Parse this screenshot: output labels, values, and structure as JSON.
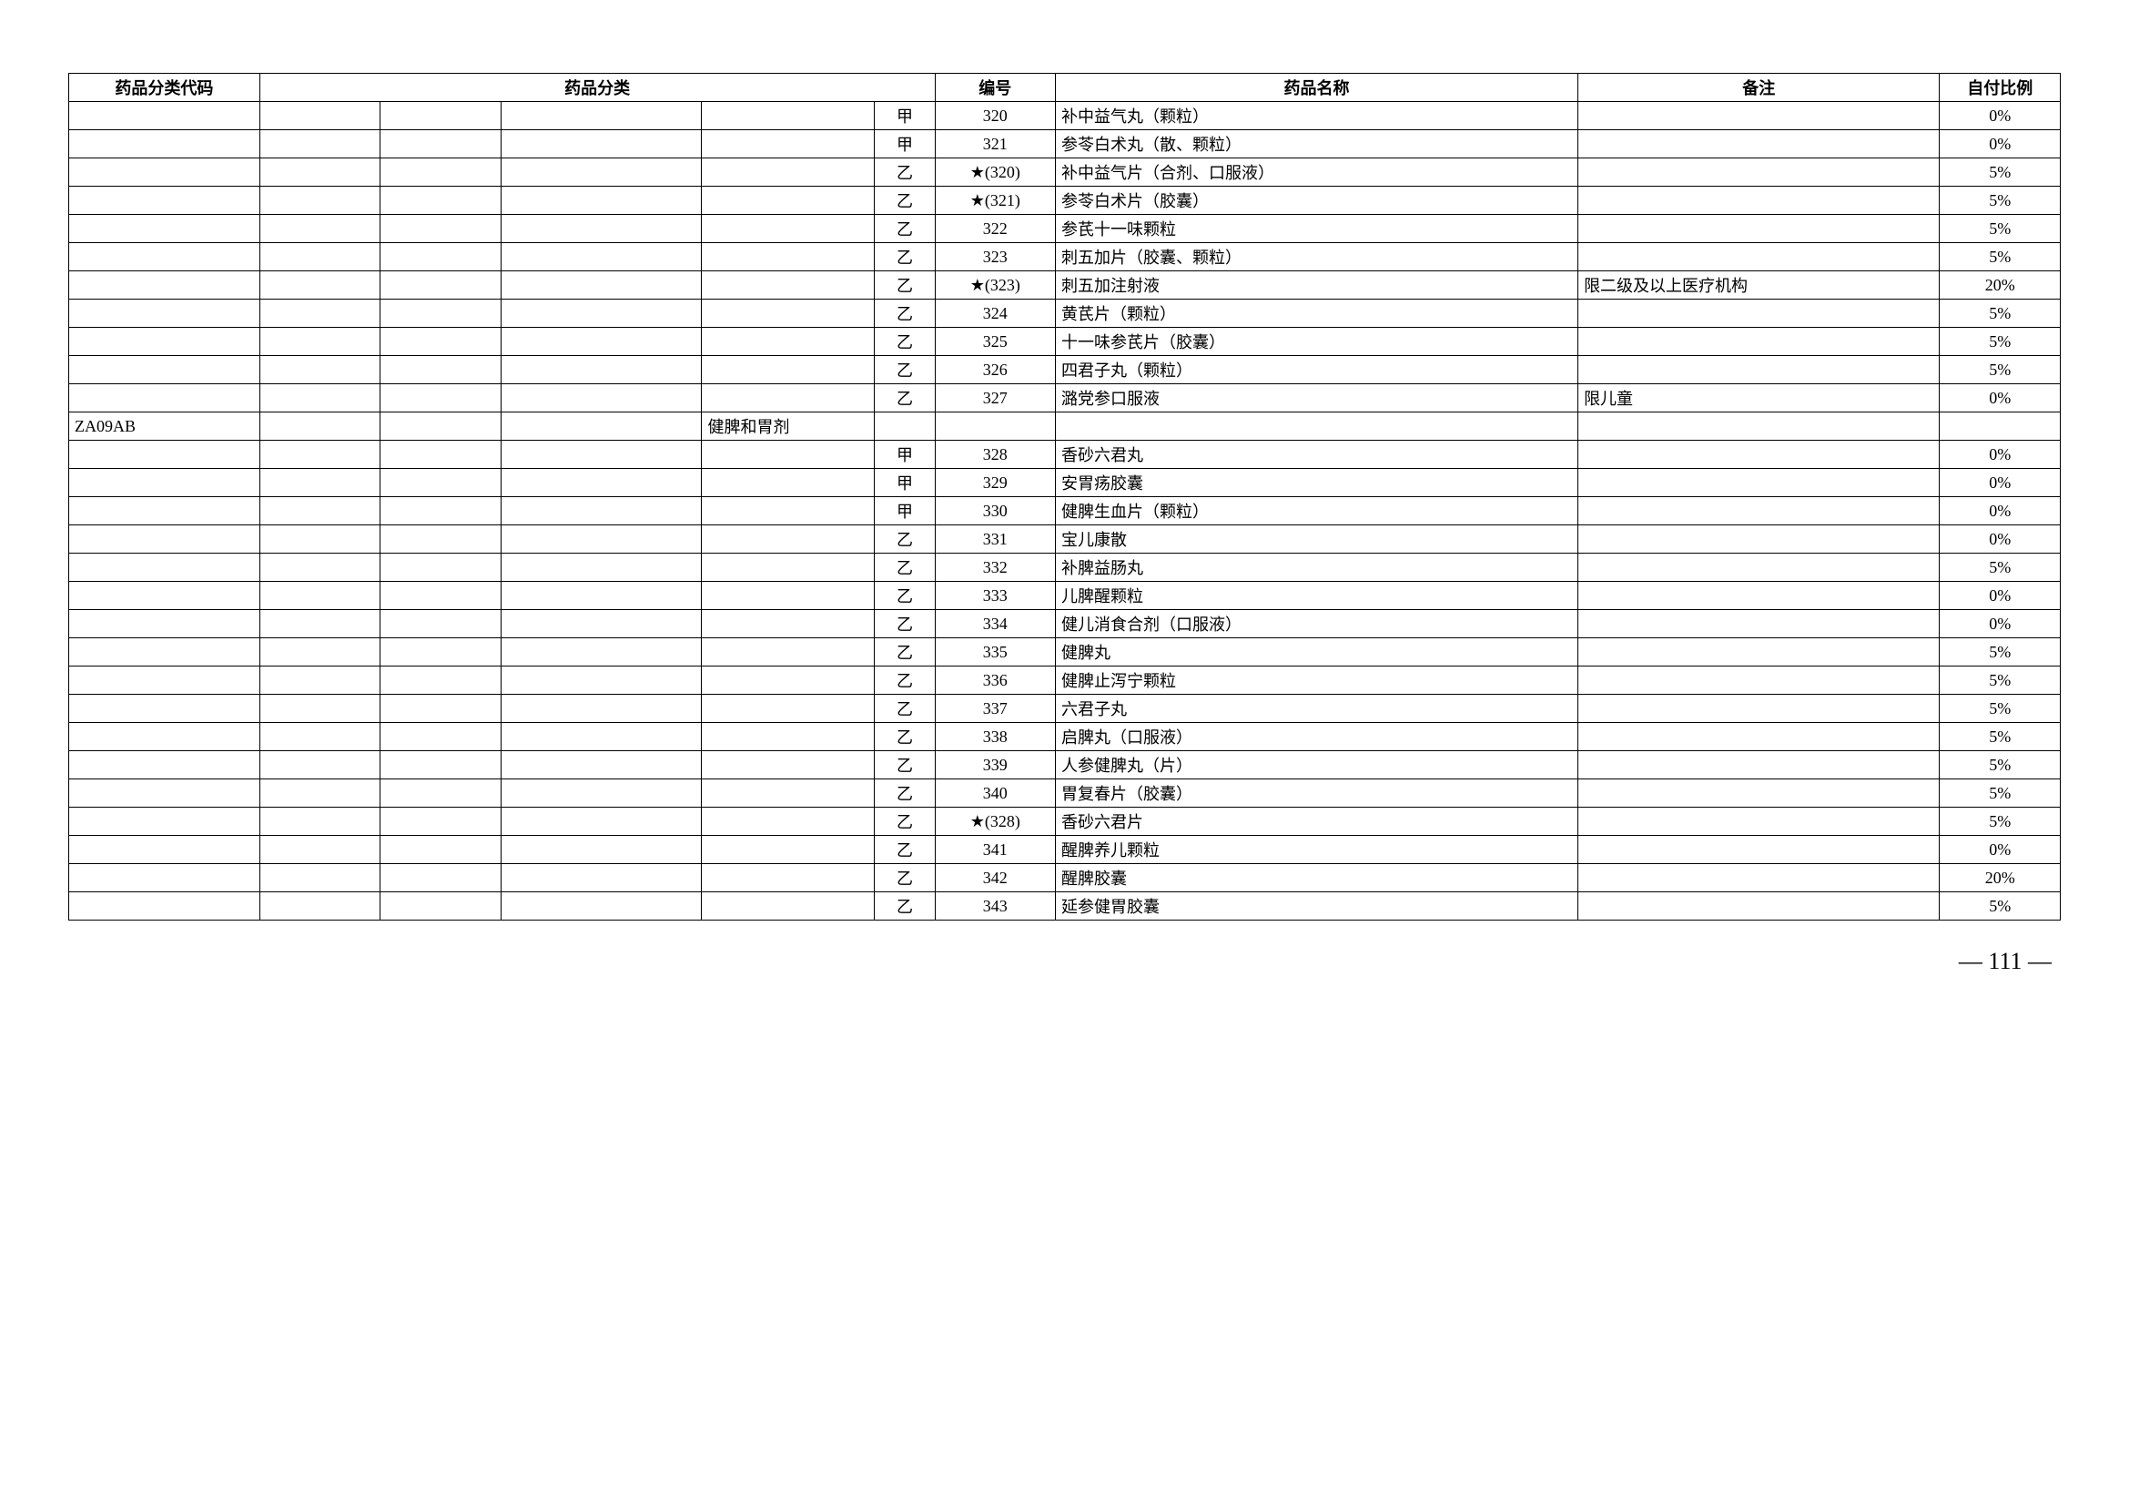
{
  "headers": {
    "code": "药品分类代码",
    "category": "药品分类",
    "number": "编号",
    "name": "药品名称",
    "note": "备注",
    "ratio": "自付比例"
  },
  "rows": [
    {
      "code": "",
      "cat4": "",
      "class": "甲",
      "num": "320",
      "name": "补中益气丸（颗粒）",
      "note": "",
      "ratio": "0%"
    },
    {
      "code": "",
      "cat4": "",
      "class": "甲",
      "num": "321",
      "name": "参苓白术丸（散、颗粒）",
      "note": "",
      "ratio": "0%"
    },
    {
      "code": "",
      "cat4": "",
      "class": "乙",
      "num": "★(320)",
      "name": "补中益气片（合剂、口服液）",
      "note": "",
      "ratio": "5%"
    },
    {
      "code": "",
      "cat4": "",
      "class": "乙",
      "num": "★(321)",
      "name": "参苓白术片（胶囊）",
      "note": "",
      "ratio": "5%"
    },
    {
      "code": "",
      "cat4": "",
      "class": "乙",
      "num": "322",
      "name": "参芪十一味颗粒",
      "note": "",
      "ratio": "5%"
    },
    {
      "code": "",
      "cat4": "",
      "class": "乙",
      "num": "323",
      "name": "刺五加片（胶囊、颗粒）",
      "note": "",
      "ratio": "5%"
    },
    {
      "code": "",
      "cat4": "",
      "class": "乙",
      "num": "★(323)",
      "name": "刺五加注射液",
      "note": "限二级及以上医疗机构",
      "ratio": "20%"
    },
    {
      "code": "",
      "cat4": "",
      "class": "乙",
      "num": "324",
      "name": "黄芪片（颗粒）",
      "note": "",
      "ratio": "5%"
    },
    {
      "code": "",
      "cat4": "",
      "class": "乙",
      "num": "325",
      "name": "十一味参芪片（胶囊）",
      "note": "",
      "ratio": "5%"
    },
    {
      "code": "",
      "cat4": "",
      "class": "乙",
      "num": "326",
      "name": "四君子丸（颗粒）",
      "note": "",
      "ratio": "5%"
    },
    {
      "code": "",
      "cat4": "",
      "class": "乙",
      "num": "327",
      "name": "潞党参口服液",
      "note": "限儿童",
      "ratio": "0%"
    },
    {
      "code": "ZA09AB",
      "cat4": "健脾和胃剂",
      "class": "",
      "num": "",
      "name": "",
      "note": "",
      "ratio": ""
    },
    {
      "code": "",
      "cat4": "",
      "class": "甲",
      "num": "328",
      "name": "香砂六君丸",
      "note": "",
      "ratio": "0%"
    },
    {
      "code": "",
      "cat4": "",
      "class": "甲",
      "num": "329",
      "name": "安胃疡胶囊",
      "note": "",
      "ratio": "0%"
    },
    {
      "code": "",
      "cat4": "",
      "class": "甲",
      "num": "330",
      "name": "健脾生血片（颗粒）",
      "note": "",
      "ratio": "0%"
    },
    {
      "code": "",
      "cat4": "",
      "class": "乙",
      "num": "331",
      "name": "宝儿康散",
      "note": "",
      "ratio": "0%"
    },
    {
      "code": "",
      "cat4": "",
      "class": "乙",
      "num": "332",
      "name": "补脾益肠丸",
      "note": "",
      "ratio": "5%"
    },
    {
      "code": "",
      "cat4": "",
      "class": "乙",
      "num": "333",
      "name": "儿脾醒颗粒",
      "note": "",
      "ratio": "0%"
    },
    {
      "code": "",
      "cat4": "",
      "class": "乙",
      "num": "334",
      "name": "健儿消食合剂（口服液）",
      "note": "",
      "ratio": "0%"
    },
    {
      "code": "",
      "cat4": "",
      "class": "乙",
      "num": "335",
      "name": "健脾丸",
      "note": "",
      "ratio": "5%"
    },
    {
      "code": "",
      "cat4": "",
      "class": "乙",
      "num": "336",
      "name": "健脾止泻宁颗粒",
      "note": "",
      "ratio": "5%"
    },
    {
      "code": "",
      "cat4": "",
      "class": "乙",
      "num": "337",
      "name": "六君子丸",
      "note": "",
      "ratio": "5%"
    },
    {
      "code": "",
      "cat4": "",
      "class": "乙",
      "num": "338",
      "name": "启脾丸（口服液）",
      "note": "",
      "ratio": "5%"
    },
    {
      "code": "",
      "cat4": "",
      "class": "乙",
      "num": "339",
      "name": "人参健脾丸（片）",
      "note": "",
      "ratio": "5%"
    },
    {
      "code": "",
      "cat4": "",
      "class": "乙",
      "num": "340",
      "name": "胃复春片（胶囊）",
      "note": "",
      "ratio": "5%"
    },
    {
      "code": "",
      "cat4": "",
      "class": "乙",
      "num": "★(328)",
      "name": "香砂六君片",
      "note": "",
      "ratio": "5%"
    },
    {
      "code": "",
      "cat4": "",
      "class": "乙",
      "num": "341",
      "name": "醒脾养儿颗粒",
      "note": "",
      "ratio": "0%"
    },
    {
      "code": "",
      "cat4": "",
      "class": "乙",
      "num": "342",
      "name": "醒脾胶囊",
      "note": "",
      "ratio": "20%"
    },
    {
      "code": "",
      "cat4": "",
      "class": "乙",
      "num": "343",
      "name": "延参健胃胶囊",
      "note": "",
      "ratio": "5%"
    }
  ],
  "pageNumber": "— 111 —"
}
